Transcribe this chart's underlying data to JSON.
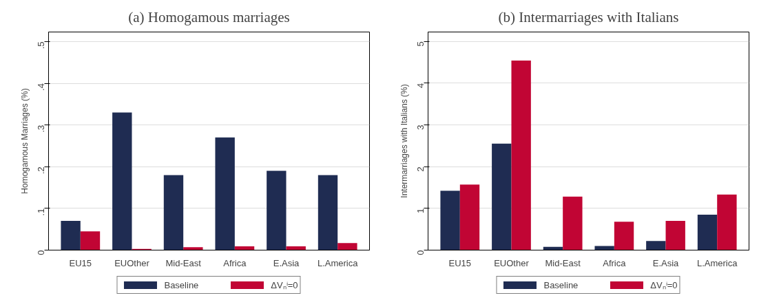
{
  "chart_data": [
    {
      "type": "bar",
      "title": "(a) Homogamous marriages",
      "ylabel": "Homogamous Marriages (%)",
      "categories": [
        "EU15",
        "EUOther",
        "Mid-East",
        "Africa",
        "E.Asia",
        "L.America"
      ],
      "series": [
        {
          "name": "Baseline",
          "color": "#1f2c52",
          "values": [
            0.07,
            0.33,
            0.18,
            0.27,
            0.19,
            0.18
          ]
        },
        {
          "name": "ΔVₙⁱ=0",
          "color": "#c10534",
          "values": [
            0.045,
            0.003,
            0.007,
            0.009,
            0.009,
            0.017
          ]
        }
      ],
      "ylim": [
        0,
        0.523
      ],
      "yticks": [
        0,
        {
          "value": 0.1,
          "label": ".1"
        },
        {
          "value": 0.2,
          "label": ".2"
        },
        {
          "value": 0.3,
          "label": ".3"
        },
        {
          "value": 0.4,
          "label": ".4"
        },
        {
          "value": 0.5,
          "label": ".5"
        }
      ],
      "grid": "y",
      "legend": "bottom"
    },
    {
      "type": "bar",
      "title": "(b) Intermarriages with Italians",
      "ylabel": "Intermarriages with Italians (%)",
      "categories": [
        "EU15",
        "EUOther",
        "Mid-East",
        "Africa",
        "E.Asia",
        "L.America"
      ],
      "series": [
        {
          "name": "Baseline",
          "color": "#1f2c52",
          "values": [
            1.42,
            2.55,
            0.08,
            0.1,
            0.22,
            0.85
          ]
        },
        {
          "name": "ΔVₙⁱ=0",
          "color": "#c10534",
          "values": [
            1.57,
            4.54,
            1.28,
            0.68,
            0.7,
            1.33
          ]
        }
      ],
      "ylim": [
        0,
        5.225
      ],
      "yticks": [
        0,
        1,
        2,
        3,
        4,
        5
      ],
      "grid": "y",
      "legend": "bottom"
    }
  ]
}
